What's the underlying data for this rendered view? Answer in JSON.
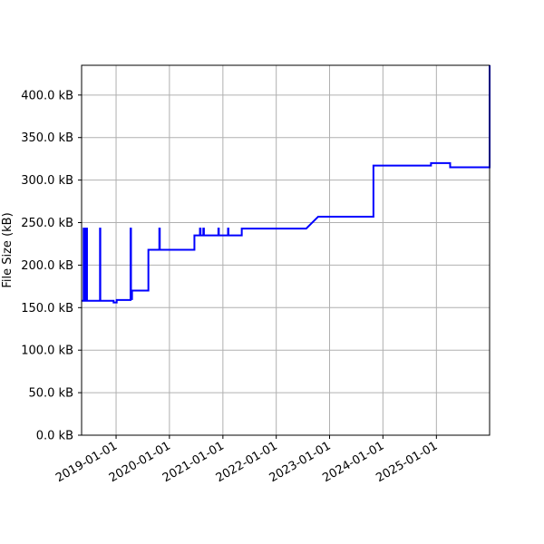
{
  "chart_data": {
    "type": "line",
    "title": "",
    "xlabel": "",
    "ylabel": "File Size (kB)",
    "grid": true,
    "x_axis_type": "date",
    "xlim": [
      "2018-05-10",
      "2025-12-31"
    ],
    "ylim": [
      0,
      435
    ],
    "y_ticks": [
      0,
      50,
      100,
      150,
      200,
      250,
      300,
      350,
      400
    ],
    "y_tick_labels": [
      "0.0 kB",
      "50.0 kB",
      "100.0 kB",
      "150.0 kB",
      "200.0 kB",
      "250.0 kB",
      "300.0 kB",
      "350.0 kB",
      "400.0 kB"
    ],
    "x_ticks": [
      "2019-01-01",
      "2020-01-01",
      "2021-01-01",
      "2022-01-01",
      "2023-01-01",
      "2024-01-01",
      "2025-01-01"
    ],
    "x_tick_labels": [
      "2019-01-01",
      "2020-01-01",
      "2021-01-01",
      "2022-01-01",
      "2023-01-01",
      "2024-01-01",
      "2025-01-01"
    ],
    "series": [
      {
        "color": "#0000ff",
        "points": [
          [
            "2018-05-10",
            158
          ],
          [
            "2018-05-24",
            158
          ],
          [
            "2018-05-24",
            243
          ],
          [
            "2018-05-28",
            243
          ],
          [
            "2018-05-28",
            158
          ],
          [
            "2018-06-01",
            158
          ],
          [
            "2018-06-01",
            243
          ],
          [
            "2018-06-04",
            243
          ],
          [
            "2018-06-04",
            158
          ],
          [
            "2018-06-07",
            158
          ],
          [
            "2018-06-07",
            243
          ],
          [
            "2018-06-10",
            243
          ],
          [
            "2018-06-10",
            158
          ],
          [
            "2018-06-13",
            158
          ],
          [
            "2018-06-13",
            243
          ],
          [
            "2018-06-16",
            243
          ],
          [
            "2018-06-16",
            158
          ],
          [
            "2018-09-13",
            158
          ],
          [
            "2018-09-13",
            243
          ],
          [
            "2018-09-15",
            243
          ],
          [
            "2018-09-15",
            158
          ],
          [
            "2018-12-15",
            158
          ],
          [
            "2018-12-15",
            156
          ],
          [
            "2019-01-05",
            156
          ],
          [
            "2019-01-05",
            159
          ],
          [
            "2019-04-10",
            159
          ],
          [
            "2019-04-10",
            243
          ],
          [
            "2019-04-13",
            243
          ],
          [
            "2019-04-13",
            160
          ],
          [
            "2019-04-20",
            160
          ],
          [
            "2019-04-20",
            170
          ],
          [
            "2019-08-10",
            170
          ],
          [
            "2019-08-10",
            218
          ],
          [
            "2019-10-24",
            218
          ],
          [
            "2019-10-24",
            243
          ],
          [
            "2019-10-27",
            243
          ],
          [
            "2019-10-27",
            218
          ],
          [
            "2020-06-20",
            218
          ],
          [
            "2020-06-20",
            235
          ],
          [
            "2020-07-28",
            235
          ],
          [
            "2020-07-28",
            243
          ],
          [
            "2020-08-01",
            243
          ],
          [
            "2020-08-01",
            235
          ],
          [
            "2020-08-20",
            235
          ],
          [
            "2020-08-20",
            243
          ],
          [
            "2020-08-24",
            243
          ],
          [
            "2020-08-24",
            235
          ],
          [
            "2020-12-01",
            235
          ],
          [
            "2020-12-01",
            243
          ],
          [
            "2020-12-04",
            243
          ],
          [
            "2020-12-04",
            235
          ],
          [
            "2021-02-05",
            235
          ],
          [
            "2021-02-05",
            243
          ],
          [
            "2021-02-08",
            243
          ],
          [
            "2021-02-08",
            235
          ],
          [
            "2021-05-10",
            235
          ],
          [
            "2021-05-10",
            243
          ],
          [
            "2022-07-25",
            243
          ],
          [
            "2022-10-15",
            257
          ],
          [
            "2023-10-28",
            257
          ],
          [
            "2023-10-28",
            317
          ],
          [
            "2024-11-25",
            317
          ],
          [
            "2024-11-25",
            320
          ],
          [
            "2025-04-05",
            320
          ],
          [
            "2025-04-05",
            315
          ],
          [
            "2025-12-31",
            315
          ],
          [
            "2025-12-31",
            435
          ]
        ]
      }
    ]
  }
}
